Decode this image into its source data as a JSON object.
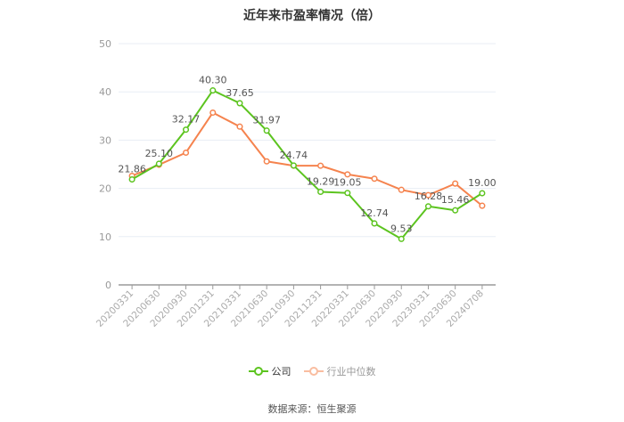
{
  "title": "近年来市盈率情况（倍）",
  "source": "数据来源：恒生聚源",
  "legend": {
    "company": "公司",
    "industry": "行业中位数"
  },
  "colors": {
    "company": "#5cc41f",
    "industry": "#f5834e",
    "grid": "#e8edf5",
    "axis": "#9a9a9a"
  },
  "chart_data": {
    "type": "line",
    "title": "近年来市盈率情况（倍）",
    "xlabel": "",
    "ylabel": "",
    "ylim": [
      0,
      50
    ],
    "yticks": [
      0,
      10,
      20,
      30,
      40,
      50
    ],
    "grid": true,
    "legend_position": "bottom",
    "categories": [
      "20200331",
      "20200630",
      "20200930",
      "20201231",
      "20210331",
      "20210630",
      "20210930",
      "20211231",
      "20220331",
      "20220630",
      "20220930",
      "20230331",
      "20230630",
      "20240708"
    ],
    "series": [
      {
        "name": "公司",
        "values": [
          21.86,
          25.1,
          32.17,
          40.3,
          37.65,
          31.97,
          24.74,
          19.29,
          19.05,
          12.74,
          9.53,
          16.28,
          15.46,
          19.0
        ],
        "labels_shown": true
      },
      {
        "name": "行业中位数",
        "values": [
          22.6,
          24.9,
          27.4,
          35.7,
          32.8,
          25.6,
          24.7,
          24.7,
          22.9,
          22.0,
          19.7,
          18.6,
          21.0,
          16.4
        ],
        "labels_shown": false
      }
    ]
  }
}
